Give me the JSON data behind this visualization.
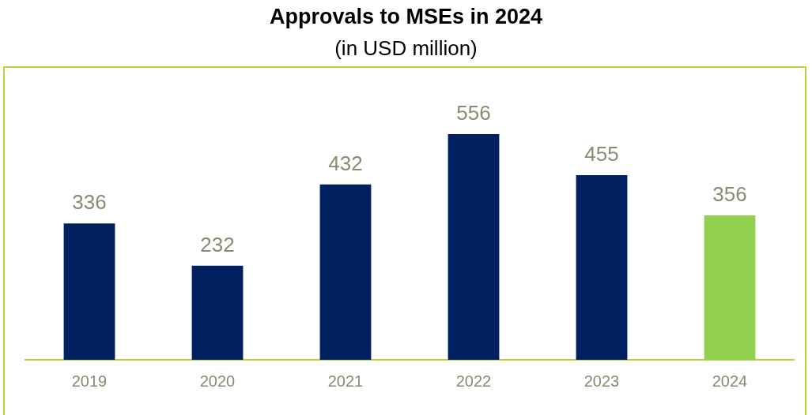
{
  "chart_data": {
    "type": "bar",
    "title": "Approvals to MSEs in 2024",
    "subtitle": "(in USD million)",
    "categories": [
      "2019",
      "2020",
      "2021",
      "2022",
      "2023",
      "2024"
    ],
    "values": [
      336,
      232,
      432,
      556,
      455,
      356
    ],
    "colors": [
      "#002060",
      "#002060",
      "#002060",
      "#002060",
      "#002060",
      "#92d050"
    ],
    "data_labels": true,
    "grid": false,
    "legend": false
  }
}
